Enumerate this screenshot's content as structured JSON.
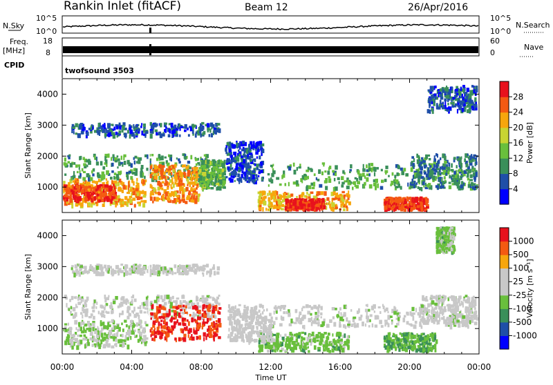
{
  "header": {
    "station": "Rankin Inlet (fitACF)",
    "beam": "Beam 12",
    "date": "26/Apr/2016"
  },
  "nsky_panel": {
    "left_label": "N.Sky",
    "right_label": "N.Search",
    "left_ticks": [
      "10^5",
      "10^0"
    ],
    "right_ticks": [
      "10^5",
      "10^0"
    ]
  },
  "freq_panel": {
    "left_label_top": "Freq.",
    "left_label_unit": "[MHz]",
    "right_label": "Nave",
    "left_ticks": [
      "18",
      "8"
    ],
    "right_ticks": [
      "60",
      "0"
    ]
  },
  "cpid": {
    "label": "CPID",
    "value": "twofsound 3503"
  },
  "colors": {
    "power_scale": [
      "#0000ff",
      "#1f4fa8",
      "#3a8f5a",
      "#69bf3c",
      "#c8d432",
      "#f7a60d",
      "#f45a12",
      "#e8121d"
    ],
    "velocity_scale": [
      "#e8121d",
      "#f45a12",
      "#f7a60d",
      "#c8c8c8",
      "#c8c8c8",
      "#69bf3c",
      "#3a8f5a",
      "#1f4fa8",
      "#0000ff"
    ]
  },
  "chart_data": [
    {
      "type": "heatmap",
      "title": "",
      "xlabel": "Time UT",
      "ylabel": "Slant Range [km]",
      "x_ticks": [
        "00:00",
        "04:00",
        "08:00",
        "12:00",
        "16:00",
        "20:00",
        "00:00"
      ],
      "y_ticks": [
        "1000",
        "2000",
        "3000",
        "4000"
      ],
      "xlim": [
        0,
        24
      ],
      "ylim": [
        180,
        4500
      ],
      "colorbar": {
        "label": "Power [dB]",
        "ticks": [
          "4",
          "8",
          "12",
          "16",
          "20",
          "24",
          "28"
        ],
        "range": [
          0,
          30
        ]
      },
      "regions": [
        {
          "t0": 0.0,
          "t1": 4.8,
          "r0": 450,
          "r1": 1300,
          "value": 20
        },
        {
          "t0": 0.0,
          "t1": 3.0,
          "r0": 600,
          "r1": 1100,
          "value": 26
        },
        {
          "t0": 0.0,
          "t1": 8.5,
          "r0": 1300,
          "r1": 2100,
          "value": 10
        },
        {
          "t0": 5.0,
          "t1": 7.8,
          "r0": 550,
          "r1": 1750,
          "value": 22
        },
        {
          "t0": 0.5,
          "t1": 9.0,
          "r0": 2700,
          "r1": 3100,
          "value": 6
        },
        {
          "t0": 7.8,
          "t1": 9.3,
          "r0": 1000,
          "r1": 1900,
          "value": 12
        },
        {
          "t0": 11.2,
          "t1": 16.5,
          "r0": 300,
          "r1": 900,
          "value": 20
        },
        {
          "t0": 12.8,
          "t1": 15.0,
          "r0": 300,
          "r1": 650,
          "value": 27
        },
        {
          "t0": 11.8,
          "t1": 24.0,
          "r0": 1000,
          "r1": 1800,
          "value": 11
        },
        {
          "t0": 18.5,
          "t1": 21.0,
          "r0": 250,
          "r1": 700,
          "value": 26
        },
        {
          "t0": 20.0,
          "t1": 24.0,
          "r0": 1000,
          "r1": 2100,
          "value": 8
        },
        {
          "t0": 21.0,
          "t1": 24.0,
          "r0": 3500,
          "r1": 4300,
          "value": 6
        },
        {
          "t0": 9.3,
          "t1": 11.5,
          "r0": 1200,
          "r1": 2500,
          "value": 5
        }
      ]
    },
    {
      "type": "heatmap",
      "title": "",
      "xlabel": "Time UT",
      "ylabel": "Slant Range [km]",
      "x_ticks": [
        "00:00",
        "04:00",
        "08:00",
        "12:00",
        "16:00",
        "20:00",
        "00:00"
      ],
      "y_ticks": [
        "1000",
        "2000",
        "3000",
        "4000"
      ],
      "xlim": [
        0,
        24
      ],
      "ylim": [
        180,
        4500
      ],
      "colorbar": {
        "label": "Velocity [m s⁻¹]",
        "ticks": [
          "1000",
          "500",
          "100",
          "25",
          "-25",
          "-100",
          "-500",
          "-1000"
        ],
        "range": [
          -1000,
          1000
        ]
      },
      "regions": [
        {
          "t0": 0.0,
          "t1": 4.8,
          "r0": 450,
          "r1": 1300,
          "value": -120
        },
        {
          "t0": 0.0,
          "t1": 9.0,
          "r0": 1400,
          "r1": 2100,
          "value": 0
        },
        {
          "t0": 5.0,
          "t1": 9.0,
          "r0": 700,
          "r1": 1800,
          "value": 800
        },
        {
          "t0": 0.5,
          "t1": 9.0,
          "r0": 2800,
          "r1": 3100,
          "value": 0
        },
        {
          "t0": 11.2,
          "t1": 16.5,
          "r0": 300,
          "r1": 900,
          "value": -200
        },
        {
          "t0": 12.0,
          "t1": 24.0,
          "r0": 1100,
          "r1": 1800,
          "value": 0
        },
        {
          "t0": 18.5,
          "t1": 21.5,
          "r0": 250,
          "r1": 900,
          "value": -300
        },
        {
          "t0": 20.5,
          "t1": 24.0,
          "r0": 1200,
          "r1": 2100,
          "value": 0
        },
        {
          "t0": 21.5,
          "t1": 22.5,
          "r0": 3500,
          "r1": 4300,
          "value": -200
        },
        {
          "t0": 9.5,
          "t1": 12.0,
          "r0": 600,
          "r1": 1800,
          "value": 60
        }
      ]
    }
  ]
}
